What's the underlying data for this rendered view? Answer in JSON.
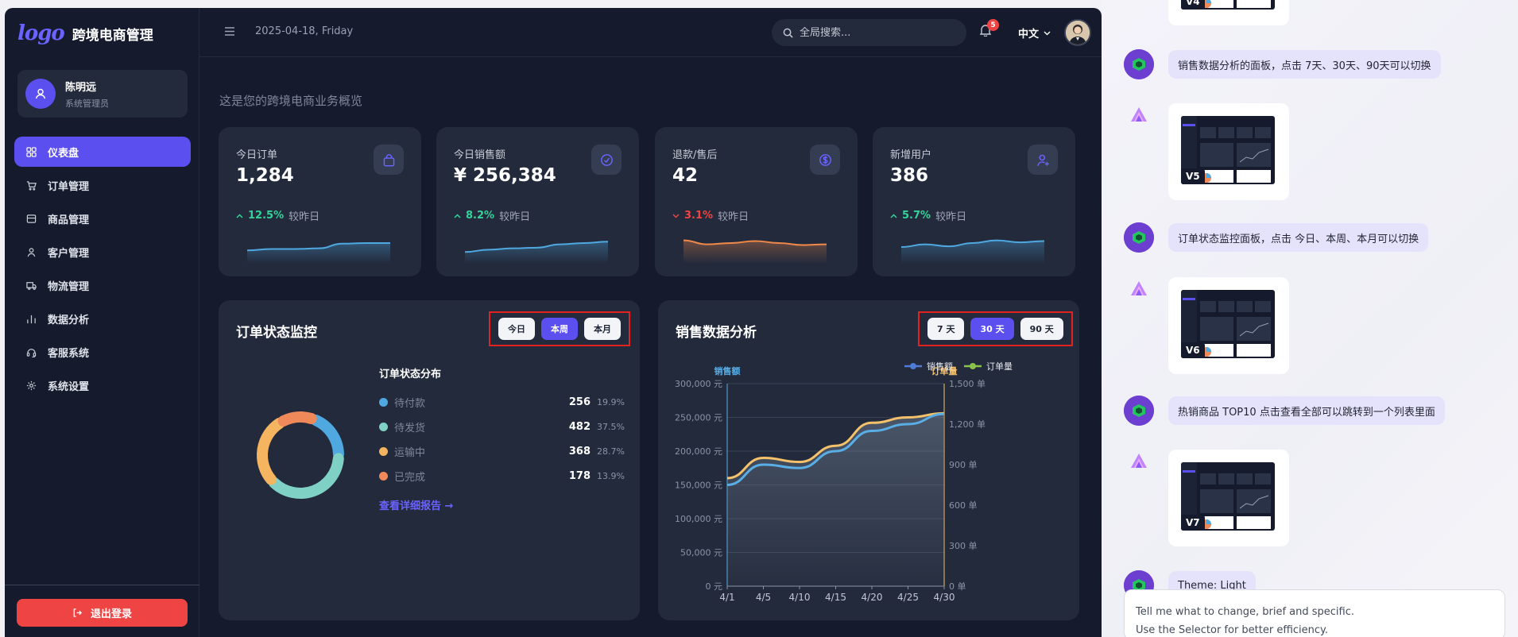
{
  "header": {
    "logo": "logo",
    "app_title": "跨境电商管理",
    "date": "2025-04-18, Friday",
    "search_placeholder": "全局搜索...",
    "notification_count": "5",
    "language": "中文"
  },
  "user": {
    "name": "陈明远",
    "role": "系统管理员"
  },
  "sidebar": {
    "items": [
      {
        "label": "仪表盘",
        "icon": "dashboard-icon",
        "active": true
      },
      {
        "label": "订单管理",
        "icon": "cart-icon"
      },
      {
        "label": "商品管理",
        "icon": "store-icon"
      },
      {
        "label": "客户管理",
        "icon": "user-icon"
      },
      {
        "label": "物流管理",
        "icon": "truck-icon"
      },
      {
        "label": "数据分析",
        "icon": "bar-chart-icon"
      },
      {
        "label": "客服系统",
        "icon": "headset-icon"
      },
      {
        "label": "系统设置",
        "icon": "gear-icon"
      }
    ],
    "logout_label": "退出登录"
  },
  "main": {
    "subtitle": "这是您的跨境电商业务概览",
    "stats": [
      {
        "label": "今日订单",
        "value": "1,284",
        "trend": "up",
        "pct": "12.5%",
        "compare": "较昨日",
        "icon": "bag-icon",
        "color": "#4fa8e0",
        "spark": [
          0.4,
          0.44,
          0.44,
          0.46,
          0.6,
          0.62,
          0.62
        ]
      },
      {
        "label": "今日销售额",
        "value": "¥ 256,384",
        "trend": "up",
        "pct": "8.2%",
        "compare": "较昨日",
        "icon": "check-circle-icon",
        "color": "#4fa8e0",
        "spark": [
          0.35,
          0.42,
          0.46,
          0.48,
          0.58,
          0.62,
          0.66
        ]
      },
      {
        "label": "退款/售后",
        "value": "42",
        "trend": "down",
        "pct": "3.1%",
        "compare": "较昨日",
        "icon": "dollar-circle-icon",
        "color": "#f0894a",
        "spark": [
          0.7,
          0.58,
          0.62,
          0.68,
          0.62,
          0.56,
          0.58
        ]
      },
      {
        "label": "新增用户",
        "value": "386",
        "trend": "up",
        "pct": "5.7%",
        "compare": "较昨日",
        "icon": "user-plus-icon",
        "color": "#4fa8e0",
        "spark": [
          0.5,
          0.58,
          0.52,
          0.62,
          0.7,
          0.64,
          0.68
        ]
      }
    ],
    "order_status": {
      "title": "订单状态监控",
      "tabs": [
        "今日",
        "本周",
        "本月"
      ],
      "active_tab": 1,
      "dist_title": "订单状态分布",
      "items": [
        {
          "name": "待付款",
          "value": 256,
          "pct": "19.9%",
          "color": "#4fa8e0"
        },
        {
          "name": "待发货",
          "value": 482,
          "pct": "37.5%",
          "color": "#7fd1c5"
        },
        {
          "name": "运输中",
          "value": 368,
          "pct": "28.7%",
          "color": "#f5b45f"
        },
        {
          "name": "已完成",
          "value": 178,
          "pct": "13.9%",
          "color": "#f0895a"
        }
      ],
      "detail_link": "查看详细报告"
    },
    "sales": {
      "title": "销售数据分析",
      "tabs": [
        "7 天",
        "30 天",
        "90 天"
      ],
      "active_tab": 1,
      "legend": [
        {
          "name": "销售额",
          "color": "#4e7bd6"
        },
        {
          "name": "订单量",
          "color": "#8bc34a"
        }
      ],
      "left_axis_title": "销售额",
      "right_axis_title": "订单量"
    }
  },
  "chart_data": {
    "type": "line",
    "x": [
      "4/1",
      "4/5",
      "4/10",
      "4/15",
      "4/20",
      "4/25",
      "4/30"
    ],
    "series": [
      {
        "name": "销售额",
        "axis": "left",
        "color": "#5aaee6",
        "values": [
          150000,
          180000,
          175000,
          200000,
          230000,
          240000,
          255000
        ]
      },
      {
        "name": "订单量",
        "axis": "right",
        "color": "#f5c26b",
        "values": [
          800,
          950,
          920,
          1040,
          1210,
          1250,
          1280
        ]
      }
    ],
    "y_left": {
      "label": "销售额",
      "range": [
        0,
        300000
      ],
      "ticks": [
        "0 元",
        "50,000 元",
        "100,000 元",
        "150,000 元",
        "200,000 元",
        "250,000 元",
        "300,000 元"
      ]
    },
    "y_right": {
      "label": "订单量",
      "range": [
        0,
        1500
      ],
      "ticks": [
        "0 单",
        "300 单",
        "600 单",
        "900 单",
        "1,200 单",
        "1,500 单"
      ]
    },
    "legend": "top-right",
    "grid": true
  },
  "chat": {
    "messages": [
      {
        "type": "thumb",
        "tag": "V4"
      },
      {
        "type": "bubble",
        "text": "销售数据分析的面板，点击 7天、30天、90天可以切换"
      },
      {
        "type": "thumb",
        "tag": "V5"
      },
      {
        "type": "bubble",
        "text": "订单状态监控面板，点击 今日、本周、本月可以切换"
      },
      {
        "type": "thumb",
        "tag": "V6"
      },
      {
        "type": "bubble",
        "text": "热销商品 TOP10 点击查看全部可以跳转到一个列表里面"
      },
      {
        "type": "thumb",
        "tag": "V7"
      },
      {
        "type": "bubble",
        "text": "Theme: Light"
      }
    ],
    "composer_line1": "Tell me what to change, brief and specific.",
    "composer_line2": "Use the Selector for better efficiency."
  }
}
